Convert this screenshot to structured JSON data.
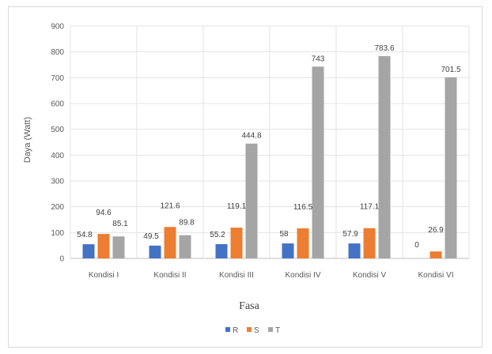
{
  "chart_data": {
    "type": "bar",
    "categories": [
      "Kondisi I",
      "Kondisi II",
      "Kondisi III",
      "Kondisi IV",
      "Kondisi V",
      "Kondisi VI"
    ],
    "series": [
      {
        "name": "R",
        "color": "#4472c4",
        "values": [
          54.8,
          49.5,
          55.2,
          58,
          57.9,
          0
        ],
        "labels": [
          "54.8",
          "49.5",
          "55.2",
          "58",
          "57.9",
          "0"
        ]
      },
      {
        "name": "S",
        "color": "#ed7d31",
        "values": [
          94.6,
          121.6,
          119.1,
          116.5,
          117.1,
          26.9
        ],
        "labels": [
          "94.6",
          "121.6",
          "119.1",
          "116.5",
          "117.1",
          "26.9"
        ]
      },
      {
        "name": "T",
        "color": "#a5a5a5",
        "values": [
          85.1,
          89.8,
          444.8,
          743,
          783.6,
          701.5
        ],
        "labels": [
          "85.1",
          "89.8",
          "444.8",
          "743",
          "783.6",
          "701.5"
        ]
      }
    ],
    "title": "",
    "xlabel": "Fasa",
    "ylabel": "Daya (Watt)",
    "ylim": [
      0,
      900
    ],
    "yticks": [
      0,
      100,
      200,
      300,
      400,
      500,
      600,
      700,
      800,
      900
    ],
    "ytick_labels": [
      "0",
      "100",
      "200",
      "300",
      "400",
      "500",
      "600",
      "700",
      "800",
      "900"
    ],
    "grid": true,
    "legend_position": "bottom"
  }
}
